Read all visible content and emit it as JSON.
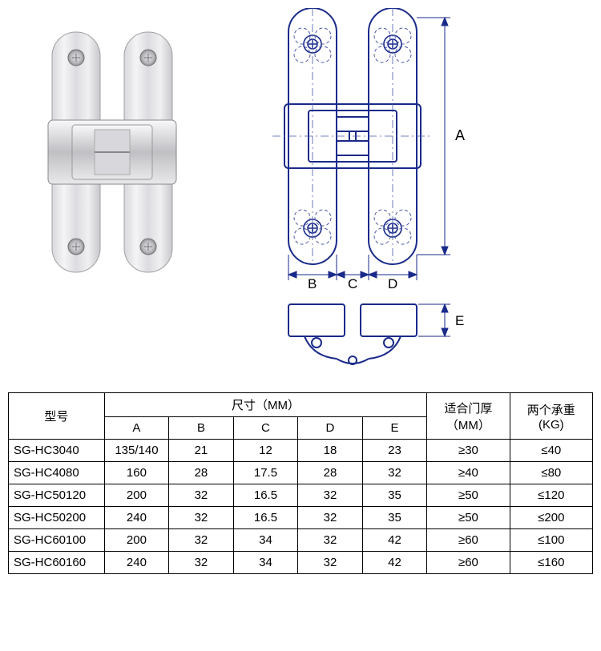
{
  "drawing": {
    "dim_labels": {
      "A": "A",
      "B": "B",
      "C": "C",
      "D": "D",
      "E": "E"
    },
    "line_color": "#1a2a8a",
    "thin_line_color": "#4a5aaa",
    "photo_colors": {
      "light": "#e8e8e8",
      "mid": "#c8c8cc",
      "dark": "#9a9aa0",
      "screw": "#b0b0b4"
    }
  },
  "table": {
    "headers": {
      "model": "型号",
      "dimensions": "尺寸（MM）",
      "cols": [
        "A",
        "B",
        "C",
        "D",
        "E"
      ],
      "door_thickness": "适合门厚",
      "door_thickness_unit": "（MM）",
      "load": "两个承重",
      "load_unit": "(KG)"
    },
    "rows": [
      {
        "model": "SG-HC3040",
        "A": "135/140",
        "B": "21",
        "C": "12",
        "D": "18",
        "E": "23",
        "fit": "≥30",
        "load": "≤40"
      },
      {
        "model": "SG-HC4080",
        "A": "160",
        "B": "28",
        "C": "17.5",
        "D": "28",
        "E": "32",
        "fit": "≥40",
        "load": "≤80"
      },
      {
        "model": "SG-HC50120",
        "A": "200",
        "B": "32",
        "C": "16.5",
        "D": "32",
        "E": "35",
        "fit": "≥50",
        "load": "≤120"
      },
      {
        "model": "SG-HC50200",
        "A": "240",
        "B": "32",
        "C": "16.5",
        "D": "32",
        "E": "35",
        "fit": "≥50",
        "load": "≤200"
      },
      {
        "model": "SG-HC60100",
        "A": "200",
        "B": "32",
        "C": "34",
        "D": "32",
        "E": "42",
        "fit": "≥60",
        "load": "≤100"
      },
      {
        "model": "SG-HC60160",
        "A": "240",
        "B": "32",
        "C": "34",
        "D": "32",
        "E": "42",
        "fit": "≥60",
        "load": "≤160"
      }
    ]
  }
}
